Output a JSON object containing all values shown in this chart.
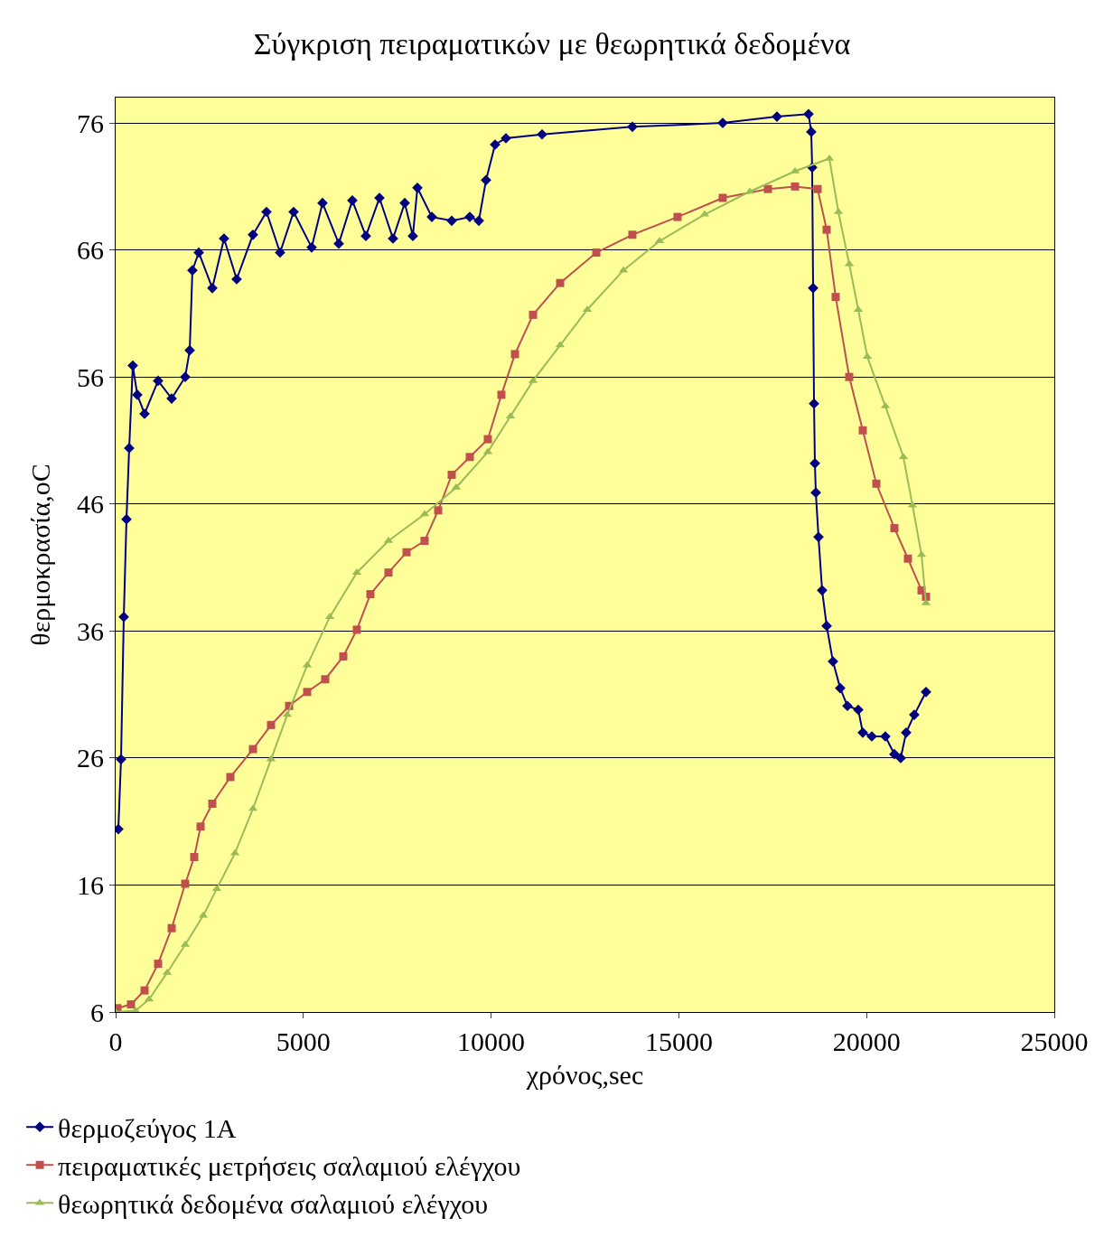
{
  "chart_data": {
    "type": "line",
    "title": "Σύγκριση πειραματικών με θεωρητικά δεδομένα",
    "xlabel": "χρόνος,sec",
    "ylabel": "θερμοκρασία,oC",
    "xlim": [
      0,
      25000
    ],
    "xticks": [
      0,
      5000,
      10000,
      15000,
      20000,
      25000
    ],
    "ylim": [
      6,
      78
    ],
    "yticks": [
      6,
      16,
      26,
      36,
      46,
      56,
      66,
      76
    ],
    "grid": "y",
    "legend": "bottom left",
    "series": [
      {
        "name": "θερμοζεύγος 1A",
        "color": "#000080",
        "marker": "diamond",
        "x": [
          72,
          144,
          217,
          289,
          361,
          457,
          577,
          770,
          1131,
          1492,
          1853,
          1973,
          2045,
          2214,
          2575,
          2887,
          3224,
          3657,
          4018,
          4379,
          4740,
          5221,
          5510,
          5943,
          6304,
          6665,
          7026,
          7387,
          7700,
          7916,
          8037,
          8422,
          8951,
          9432,
          9673,
          9865,
          10106,
          10395,
          11357,
          13763,
          16169,
          17613,
          18455,
          18527,
          18551,
          18576,
          18600,
          18624,
          18648,
          18720,
          18816,
          18937,
          19105,
          19298,
          19490,
          19779,
          19899,
          20139,
          20500,
          20741,
          20909,
          21054,
          21270,
          21583
        ],
        "values": [
          20.4,
          25.9,
          37.1,
          44.8,
          50.4,
          56.9,
          54.6,
          53.1,
          55.7,
          54.3,
          56.0,
          58.1,
          64.4,
          65.8,
          63.0,
          66.9,
          63.7,
          67.2,
          69.0,
          65.8,
          69.0,
          66.2,
          69.7,
          66.5,
          69.9,
          67.1,
          70.1,
          66.9,
          69.7,
          67.1,
          70.9,
          68.6,
          68.3,
          68.6,
          68.3,
          71.5,
          74.3,
          74.8,
          75.1,
          75.7,
          76.0,
          76.5,
          76.7,
          75.3,
          72.5,
          63.0,
          53.9,
          49.2,
          46.9,
          43.4,
          39.2,
          36.4,
          33.6,
          31.5,
          30.1,
          29.8,
          28.0,
          27.7,
          27.7,
          26.3,
          26.0,
          28.0,
          29.4,
          31.2
        ]
      },
      {
        "name": "πειραματικές μετρήσεις σαλαμιού ελέγχου",
        "color": "#c0504d",
        "marker": "square",
        "x": [
          48,
          409,
          770,
          1131,
          1492,
          1853,
          2093,
          2262,
          2575,
          3056,
          3657,
          4138,
          4620,
          5101,
          5582,
          6063,
          6424,
          6785,
          7267,
          7748,
          8229,
          8590,
          8951,
          9432,
          9913,
          10274,
          10635,
          11116,
          11838,
          12801,
          13763,
          14966,
          16169,
          17372,
          18094,
          18696,
          18937,
          19177,
          19538,
          19899,
          20260,
          20741,
          21102,
          21463,
          21583
        ],
        "values": [
          6.3,
          6.6,
          7.7,
          9.8,
          12.6,
          16.1,
          18.2,
          20.6,
          22.4,
          24.5,
          26.7,
          28.6,
          30.1,
          31.2,
          32.2,
          34.0,
          36.1,
          38.9,
          40.6,
          42.2,
          43.1,
          45.5,
          48.3,
          49.7,
          51.1,
          54.6,
          57.8,
          60.9,
          63.4,
          65.8,
          67.2,
          68.6,
          70.1,
          70.8,
          71.0,
          70.8,
          67.6,
          62.3,
          56.0,
          51.8,
          47.6,
          44.1,
          41.7,
          39.2,
          38.7
        ]
      },
      {
        "name": "θεωρητικά δεδομένα σαλαμιού ελέγχου",
        "color": "#9bbb59",
        "marker": "triangle",
        "x": [
          0,
          529,
          890,
          1372,
          1853,
          2334,
          2695,
          3176,
          3657,
          4138,
          4572,
          5101,
          5702,
          6424,
          7267,
          8229,
          9071,
          9913,
          10515,
          11116,
          11838,
          12560,
          13523,
          14485,
          15688,
          16891,
          18094,
          19009,
          19249,
          19538,
          19779,
          20019,
          20500,
          20981,
          21222,
          21463,
          21583
        ],
        "values": [
          6.0,
          6.1,
          7.0,
          9.1,
          11.3,
          13.6,
          15.7,
          18.5,
          22.0,
          25.9,
          29.4,
          33.3,
          37.1,
          40.6,
          43.1,
          45.2,
          47.3,
          50.1,
          52.9,
          55.7,
          58.5,
          61.3,
          64.4,
          66.7,
          68.8,
          70.6,
          72.2,
          73.2,
          69.0,
          64.9,
          61.3,
          57.6,
          53.7,
          49.7,
          45.9,
          42.0,
          38.2
        ]
      }
    ]
  }
}
